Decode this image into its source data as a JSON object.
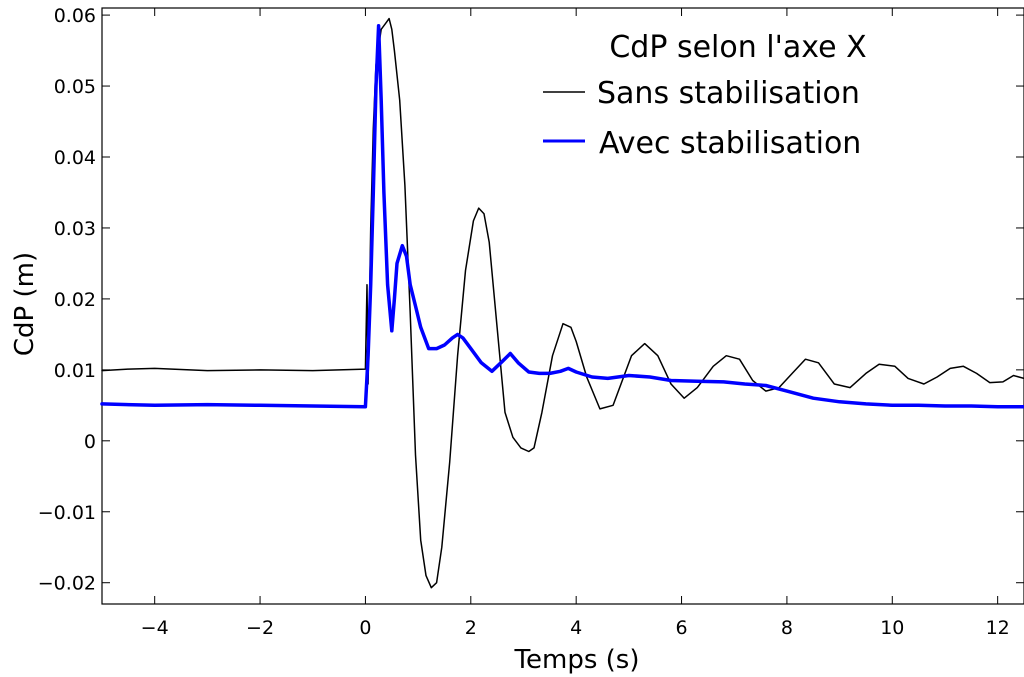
{
  "chart_data": {
    "type": "line",
    "title": "",
    "xlabel": "Temps (s)",
    "ylabel": "CdP (m)",
    "xlim": [
      -5,
      12.5
    ],
    "ylim": [
      -0.023,
      0.061
    ],
    "x_ticks": [
      -4,
      -2,
      0,
      2,
      4,
      6,
      8,
      10,
      12
    ],
    "x_tick_labels": [
      "−4",
      "−2",
      "0",
      "2",
      "4",
      "6",
      "8",
      "10",
      "12"
    ],
    "y_ticks": [
      -0.02,
      -0.01,
      0,
      0.01,
      0.02,
      0.03,
      0.04,
      0.05,
      0.06
    ],
    "y_tick_labels": [
      "−0.02",
      "−0.01",
      "0",
      "0.01",
      "0.02",
      "0.03",
      "0.04",
      "0.05",
      "0.06"
    ],
    "grid": false,
    "legend": {
      "title": "CdP selon l'axe X",
      "location": "top-right",
      "entries": [
        "Sans stabilisation",
        "Avec stabilisation"
      ]
    },
    "series": [
      {
        "name": "Sans stabilisation",
        "color": "#000000",
        "line_width": 1.5,
        "x": [
          -5,
          -4.5,
          -4,
          -3,
          -2,
          -1,
          -0.5,
          0,
          0.03,
          0.05,
          0.1,
          0.15,
          0.2,
          0.3,
          0.4,
          0.45,
          0.5,
          0.55,
          0.65,
          0.75,
          0.85,
          0.95,
          1.05,
          1.15,
          1.25,
          1.35,
          1.45,
          1.6,
          1.75,
          1.9,
          2.05,
          2.15,
          2.25,
          2.35,
          2.5,
          2.65,
          2.8,
          2.95,
          3.1,
          3.2,
          3.35,
          3.55,
          3.75,
          3.9,
          4.0,
          4.2,
          4.45,
          4.7,
          4.85,
          5.05,
          5.3,
          5.55,
          5.8,
          6.05,
          6.3,
          6.6,
          6.85,
          7.1,
          7.35,
          7.6,
          7.85,
          8.1,
          8.35,
          8.6,
          8.9,
          9.2,
          9.5,
          9.75,
          10.05,
          10.3,
          10.6,
          10.85,
          11.1,
          11.35,
          11.6,
          11.85,
          12.1,
          12.3,
          12.5
        ],
        "y": [
          0.0099,
          0.0101,
          0.0102,
          0.0099,
          0.01,
          0.0099,
          0.01,
          0.0101,
          0.022,
          0.008,
          0.03,
          0.044,
          0.053,
          0.058,
          0.059,
          0.0595,
          0.058,
          0.055,
          0.048,
          0.036,
          0.018,
          -0.002,
          -0.014,
          -0.019,
          -0.0207,
          -0.02,
          -0.015,
          -0.003,
          0.012,
          0.024,
          0.031,
          0.0328,
          0.032,
          0.028,
          0.016,
          0.004,
          0.0005,
          -0.001,
          -0.0015,
          -0.001,
          0.004,
          0.012,
          0.0165,
          0.016,
          0.014,
          0.009,
          0.0045,
          0.005,
          0.008,
          0.012,
          0.0137,
          0.012,
          0.008,
          0.006,
          0.0075,
          0.0105,
          0.012,
          0.0115,
          0.0085,
          0.007,
          0.0075,
          0.0095,
          0.0115,
          0.011,
          0.008,
          0.0075,
          0.0095,
          0.0108,
          0.0105,
          0.0088,
          0.008,
          0.009,
          0.0102,
          0.0105,
          0.0095,
          0.0082,
          0.0083,
          0.0092,
          0.0088
        ]
      },
      {
        "name": "Avec stabilisation",
        "color": "#0000ff",
        "line_width": 3.5,
        "x": [
          -5,
          -4,
          -3,
          -2,
          -1,
          0,
          0.05,
          0.1,
          0.15,
          0.2,
          0.25,
          0.3,
          0.35,
          0.42,
          0.5,
          0.55,
          0.6,
          0.7,
          0.78,
          0.85,
          0.95,
          1.05,
          1.2,
          1.35,
          1.5,
          1.65,
          1.75,
          1.85,
          2.0,
          2.2,
          2.4,
          2.6,
          2.75,
          2.9,
          3.1,
          3.3,
          3.5,
          3.7,
          3.85,
          4.0,
          4.3,
          4.6,
          5.0,
          5.4,
          5.8,
          6.3,
          6.8,
          7.2,
          7.6,
          8.0,
          8.5,
          9.0,
          9.5,
          10.0,
          10.5,
          11.0,
          11.5,
          12.0,
          12.5
        ],
        "y": [
          0.0052,
          0.005,
          0.0051,
          0.005,
          0.0049,
          0.0048,
          0.012,
          0.022,
          0.035,
          0.05,
          0.0585,
          0.048,
          0.035,
          0.022,
          0.0155,
          0.02,
          0.025,
          0.0275,
          0.026,
          0.022,
          0.019,
          0.016,
          0.013,
          0.013,
          0.0135,
          0.0145,
          0.015,
          0.0145,
          0.013,
          0.011,
          0.0098,
          0.0112,
          0.0123,
          0.011,
          0.0097,
          0.0095,
          0.0095,
          0.0098,
          0.0102,
          0.0097,
          0.009,
          0.0088,
          0.0092,
          0.009,
          0.0085,
          0.0084,
          0.0083,
          0.008,
          0.0078,
          0.007,
          0.006,
          0.0055,
          0.0052,
          0.005,
          0.005,
          0.0049,
          0.0049,
          0.0048,
          0.0048
        ]
      }
    ]
  }
}
